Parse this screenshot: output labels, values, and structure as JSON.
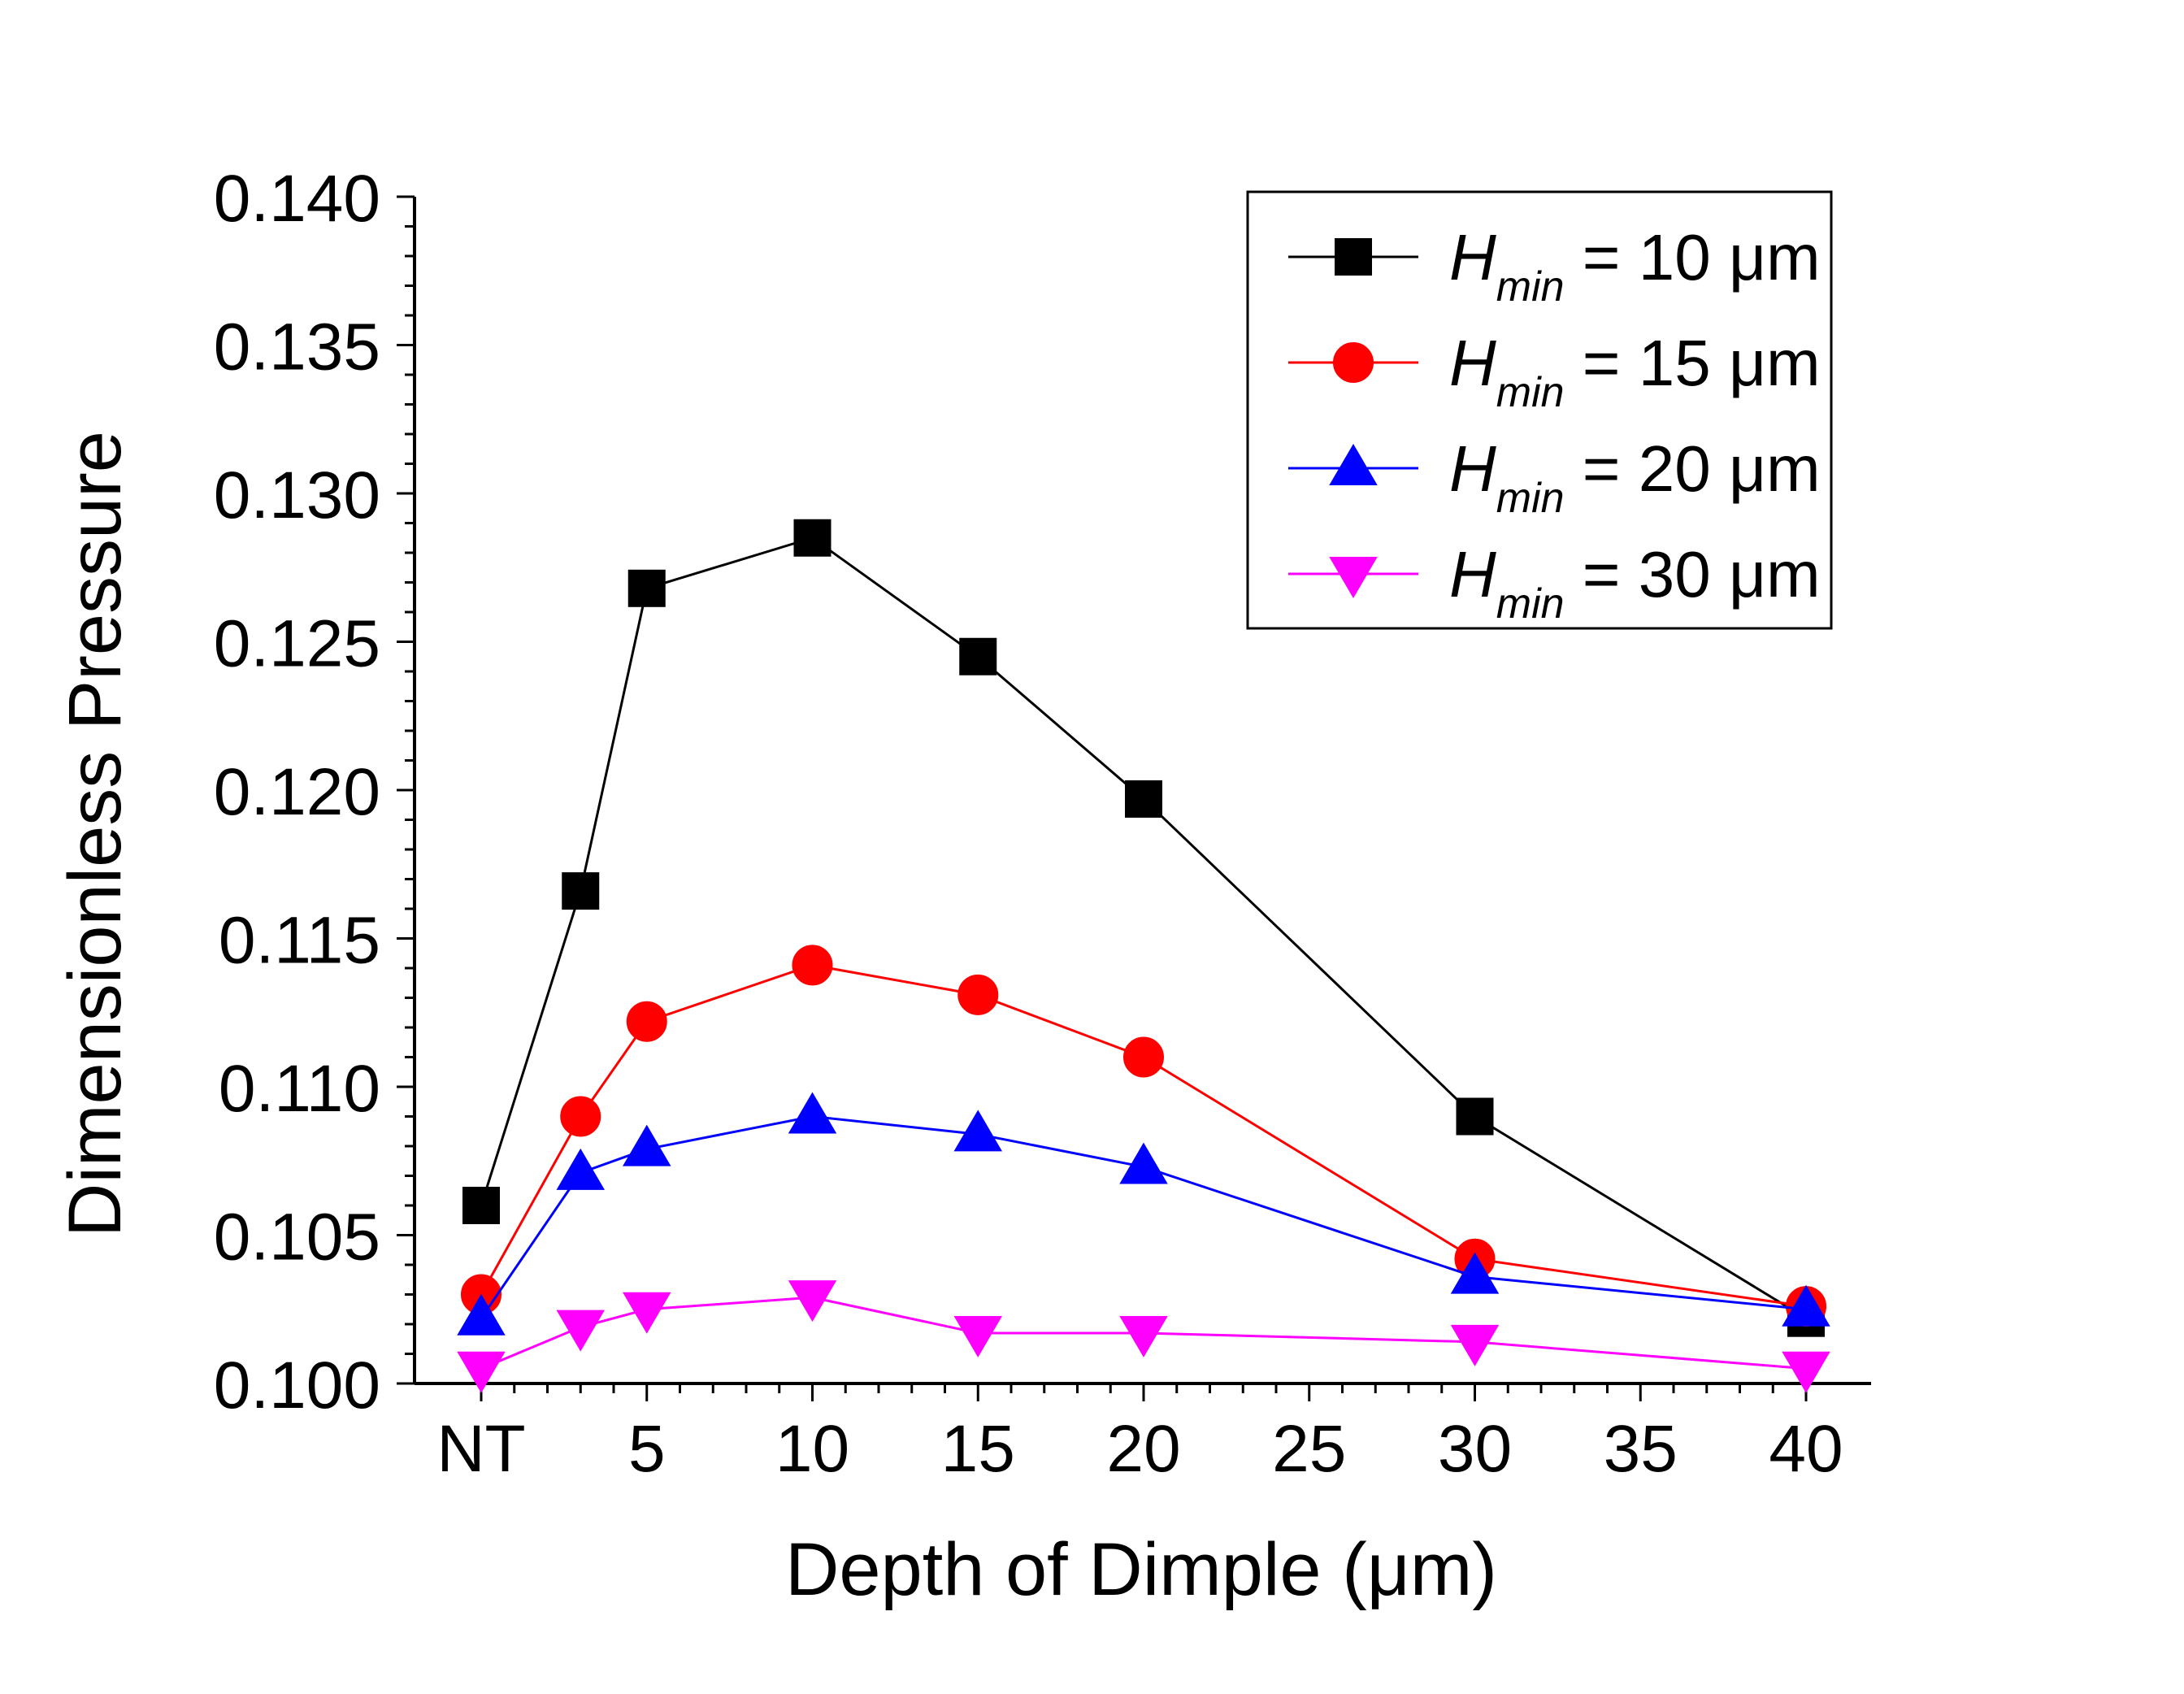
{
  "chart_data": {
    "type": "line",
    "title": "",
    "xlabel": "Depth of Dimple (μm)",
    "ylabel": "Dimensionless Pressure",
    "xlim": [
      0,
      40
    ],
    "ylim": [
      0.1,
      0.14
    ],
    "x_ticks": [
      {
        "value": 0,
        "label": "NT"
      },
      {
        "value": 5,
        "label": "5"
      },
      {
        "value": 10,
        "label": "10"
      },
      {
        "value": 15,
        "label": "15"
      },
      {
        "value": 20,
        "label": "20"
      },
      {
        "value": 25,
        "label": "25"
      },
      {
        "value": 30,
        "label": "30"
      },
      {
        "value": 35,
        "label": "35"
      },
      {
        "value": 40,
        "label": "40"
      }
    ],
    "y_ticks": [
      {
        "value": 0.1,
        "label": "0.100"
      },
      {
        "value": 0.105,
        "label": "0.105"
      },
      {
        "value": 0.11,
        "label": "0.110"
      },
      {
        "value": 0.115,
        "label": "0.115"
      },
      {
        "value": 0.12,
        "label": "0.120"
      },
      {
        "value": 0.125,
        "label": "0.125"
      },
      {
        "value": 0.13,
        "label": "0.130"
      },
      {
        "value": 0.135,
        "label": "0.135"
      },
      {
        "value": 0.14,
        "label": "0.140"
      }
    ],
    "grid": false,
    "legend_position": "top-right",
    "x": [
      0,
      3,
      5,
      10,
      15,
      20,
      30,
      40
    ],
    "series": [
      {
        "name": "H_min = 10 μm",
        "symbol": "H",
        "subscript": "min",
        "value_text": "= 10 μm",
        "color": "#000000",
        "marker": "square",
        "values": [
          0.106,
          0.1166,
          0.1268,
          0.1285,
          0.1245,
          0.1197,
          0.109,
          0.1022
        ]
      },
      {
        "name": "H_min = 15 μm",
        "symbol": "H",
        "subscript": "min",
        "value_text": "= 15 μm",
        "color": "#ff0000",
        "marker": "circle",
        "values": [
          0.103,
          0.109,
          0.1122,
          0.1141,
          0.1131,
          0.111,
          0.1042,
          0.1026
        ]
      },
      {
        "name": "H_min = 20 μm",
        "symbol": "H",
        "subscript": "min",
        "value_text": "= 20 μm",
        "color": "#0000ff",
        "marker": "triangle-up",
        "values": [
          0.1022,
          0.1071,
          0.1079,
          0.109,
          0.1084,
          0.1073,
          0.1036,
          0.1025
        ]
      },
      {
        "name": "H_min = 30 μm",
        "symbol": "H",
        "subscript": "min",
        "value_text": "= 30 μm",
        "color": "#ff00ff",
        "marker": "triangle-down",
        "values": [
          0.1005,
          0.1019,
          0.1025,
          0.1029,
          0.1017,
          0.1017,
          0.1014,
          0.1005
        ]
      }
    ]
  }
}
